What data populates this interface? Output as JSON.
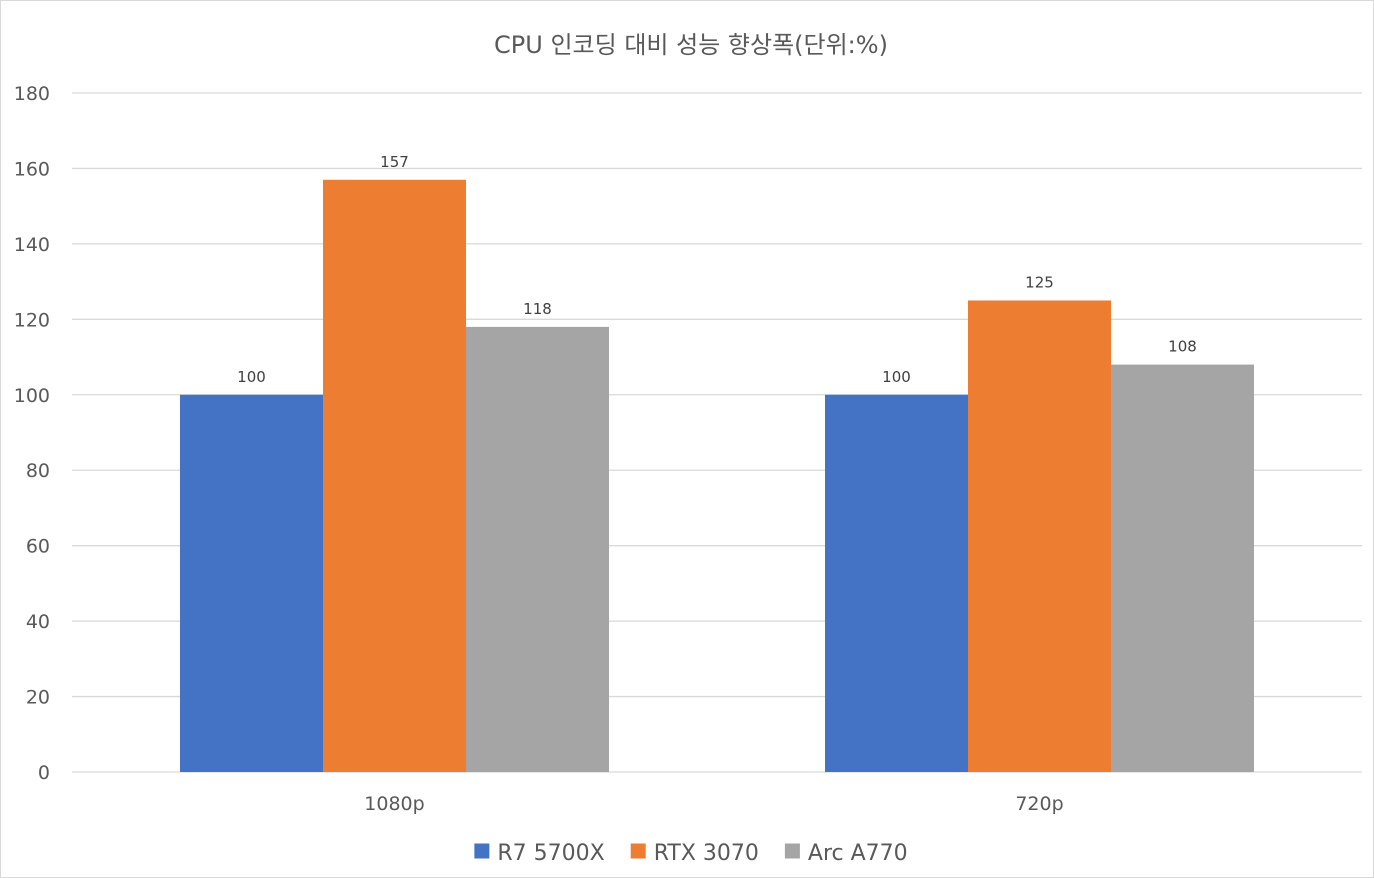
{
  "chart_data": {
    "type": "bar",
    "title": "CPU 인코딩 대비 성능 향상폭(단위:%)",
    "xlabel": "",
    "ylabel": "",
    "categories": [
      "1080p",
      "720p"
    ],
    "series": [
      {
        "name": "R7 5700X",
        "color": "#4472c4",
        "values": [
          100,
          100
        ]
      },
      {
        "name": "RTX 3070",
        "color": "#ed7d31",
        "values": [
          157,
          125
        ]
      },
      {
        "name": "Arc A770",
        "color": "#a5a5a5",
        "values": [
          118,
          108
        ]
      }
    ],
    "ylim": [
      0,
      180
    ],
    "y_ticks": [
      0,
      20,
      40,
      60,
      80,
      100,
      120,
      140,
      160,
      180
    ],
    "grid": true,
    "data_labels": true,
    "legend_position": "bottom"
  }
}
